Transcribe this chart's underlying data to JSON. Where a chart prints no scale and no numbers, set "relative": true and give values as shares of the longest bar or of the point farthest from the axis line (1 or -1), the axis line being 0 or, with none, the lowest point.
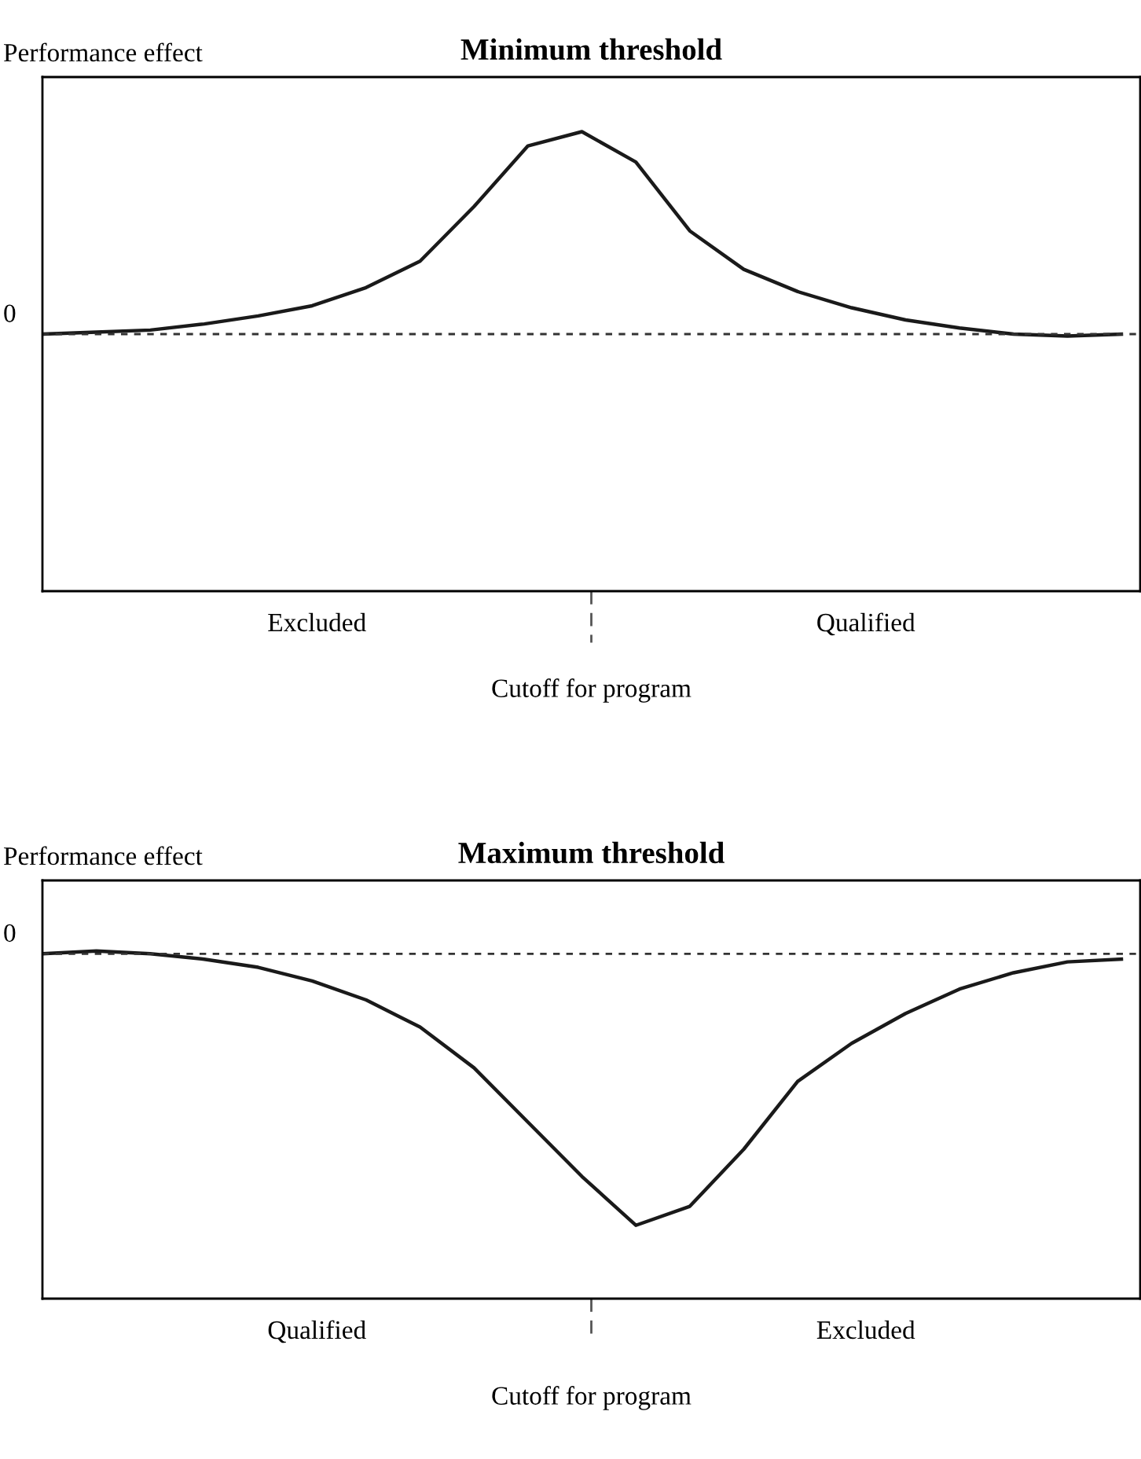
{
  "chart_data": [
    {
      "type": "line",
      "title": "Minimum threshold",
      "ylabel": "Performance effect",
      "relative": true,
      "marker": "none",
      "line_style": "solid",
      "categories": [
        null,
        null,
        null,
        null,
        null,
        null,
        null,
        null,
        null,
        null,
        null,
        null,
        null,
        null,
        null,
        null,
        null,
        null,
        null,
        null,
        null
      ],
      "series": [
        {
          "color": "#1a1a1a",
          "values": [
            0,
            0.01,
            0.02,
            0.05,
            0.09,
            0.14,
            0.23,
            0.36,
            0.63,
            0.93,
            1.0,
            0.85,
            0.51,
            0.32,
            0.21,
            0.13,
            0.07,
            0.03,
            0,
            -0.01,
            0
          ]
        }
      ],
      "annotations": [
        "Excluded",
        "Qualified"
      ],
      "ref_lines": [
        {
          "axis": "y",
          "value": 0,
          "label": "0",
          "line_style": "dotted",
          "color": "#333333"
        },
        {
          "axis": "x",
          "label": "Cutoff for program",
          "line_style": "dashed",
          "color": "#555555"
        }
      ]
    },
    {
      "type": "line",
      "title": "Maximum threshold",
      "ylabel": "Performance effect",
      "relative": true,
      "marker": "none",
      "line_style": "solid",
      "categories": [
        null,
        null,
        null,
        null,
        null,
        null,
        null,
        null,
        null,
        null,
        null,
        null,
        null,
        null,
        null,
        null,
        null,
        null,
        null,
        null,
        null
      ],
      "series": [
        {
          "color": "#1a1a1a",
          "values": [
            0,
            0.01,
            0,
            -0.02,
            -0.05,
            -0.1,
            -0.17,
            -0.27,
            -0.42,
            -0.62,
            -0.82,
            -1.0,
            -0.93,
            -0.72,
            -0.47,
            -0.33,
            -0.22,
            -0.13,
            -0.07,
            -0.03,
            -0.02
          ]
        }
      ],
      "annotations": [
        "Qualified",
        "Excluded"
      ],
      "ref_lines": [
        {
          "axis": "y",
          "value": 0,
          "label": "0",
          "line_style": "dotted",
          "color": "#333333"
        },
        {
          "axis": "x",
          "label": "Cutoff for program",
          "line_style": "dashed",
          "color": "#555555"
        }
      ]
    }
  ]
}
